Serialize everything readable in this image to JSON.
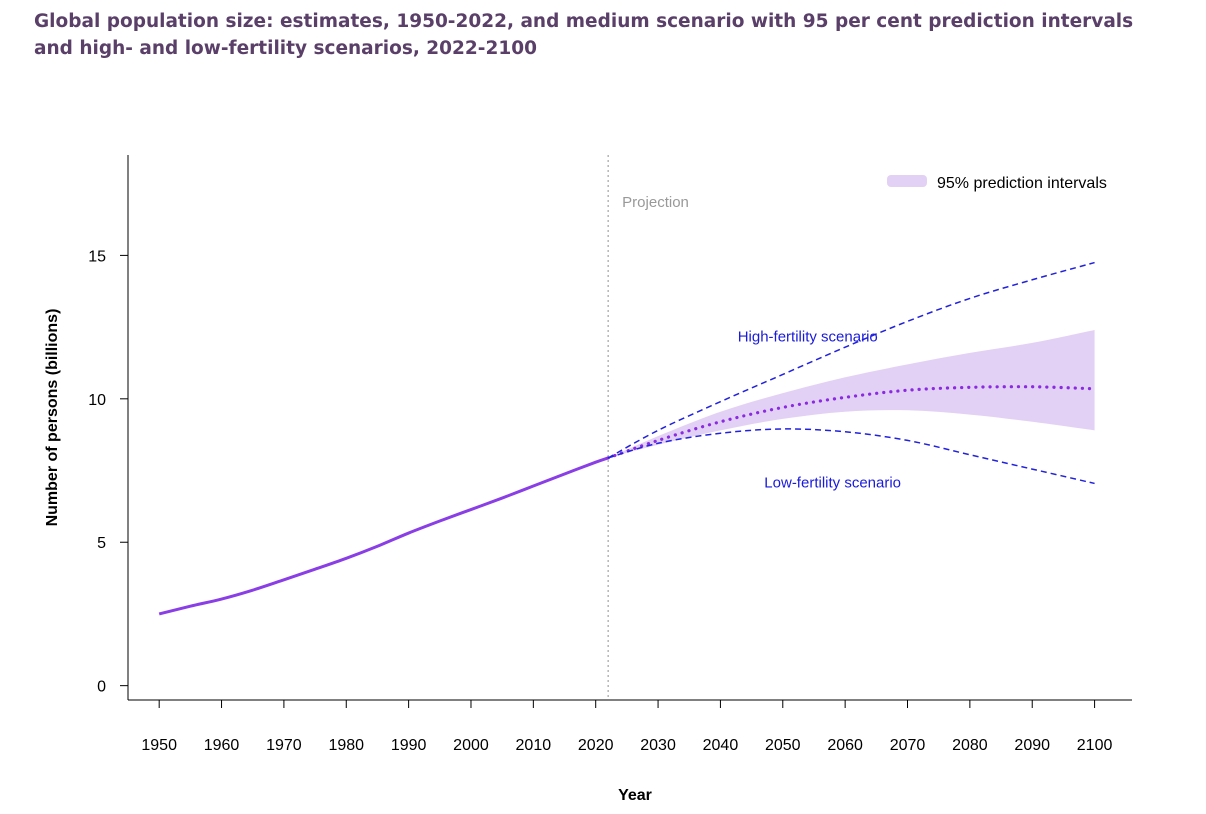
{
  "title": {
    "line1": "Global population size: estimates, 1950-2022, and medium scenario with 95 per cent prediction intervals",
    "line2": "and high- and low-fertility scenarios, 2022-2100"
  },
  "chart_data": {
    "type": "line",
    "xlabel": "Year",
    "ylabel": "Number of persons (billions)",
    "xlim": [
      1945,
      2106
    ],
    "ylim": [
      -0.5,
      18.5
    ],
    "x_ticks": [
      1950,
      1960,
      1970,
      1980,
      1990,
      2000,
      2010,
      2020,
      2030,
      2040,
      2050,
      2060,
      2070,
      2080,
      2090,
      2100
    ],
    "y_ticks": [
      0,
      5,
      10,
      15
    ],
    "grid": false,
    "projection_year": 2022,
    "projection_label": "Projection",
    "legend": {
      "label": "95% prediction intervals",
      "placement": "top-right"
    },
    "colors": {
      "estimate": "#8a3ee6",
      "medium": "#8a2be2",
      "scenario": "#2222dd",
      "interval": "#e3d1f5",
      "projection_line": "#aaaaaa",
      "annotation": "#1a1adb",
      "projection_text": "#999999"
    },
    "annotations": [
      {
        "text": "High-fertility scenario",
        "x": 2054,
        "y": 12.0
      },
      {
        "text": "Low-fertility scenario",
        "x": 2058,
        "y": 6.9
      }
    ],
    "series": [
      {
        "style": "solid",
        "x": [
          1950,
          1955,
          1960,
          1965,
          1970,
          1975,
          1980,
          1985,
          1990,
          1995,
          2000,
          2005,
          2010,
          2015,
          2020,
          2022
        ],
        "y": [
          2.5,
          2.77,
          3.02,
          3.33,
          3.69,
          4.06,
          4.44,
          4.86,
          5.32,
          5.74,
          6.14,
          6.54,
          6.96,
          7.38,
          7.79,
          7.94
        ]
      },
      {
        "style": "dotted",
        "x": [
          2022,
          2030,
          2040,
          2050,
          2060,
          2070,
          2080,
          2090,
          2100
        ],
        "y": [
          7.94,
          8.55,
          9.2,
          9.7,
          10.05,
          10.3,
          10.4,
          10.42,
          10.35
        ]
      },
      {
        "style": "dashed",
        "x": [
          2022,
          2030,
          2040,
          2050,
          2060,
          2070,
          2080,
          2090,
          2100
        ],
        "y": [
          7.94,
          8.9,
          9.9,
          10.85,
          11.8,
          12.7,
          13.5,
          14.15,
          14.75
        ]
      },
      {
        "style": "dashed",
        "x": [
          2022,
          2030,
          2040,
          2050,
          2060,
          2070,
          2080,
          2090,
          2100
        ],
        "y": [
          7.94,
          8.45,
          8.8,
          8.95,
          8.85,
          8.55,
          8.05,
          7.55,
          7.05
        ]
      }
    ],
    "interval": {
      "x": [
        2022,
        2030,
        2040,
        2050,
        2060,
        2070,
        2080,
        2090,
        2100
      ],
      "upper": [
        7.94,
        8.7,
        9.55,
        10.2,
        10.75,
        11.2,
        11.6,
        11.95,
        12.4
      ],
      "lower": [
        7.94,
        8.4,
        8.9,
        9.3,
        9.55,
        9.6,
        9.45,
        9.2,
        8.9
      ]
    }
  }
}
